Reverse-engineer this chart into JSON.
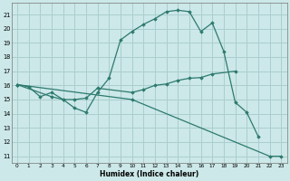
{
  "xlabel": "Humidex (Indice chaleur)",
  "bg_color": "#cce8e8",
  "grid_color": "#aacece",
  "line_color": "#2d7a6e",
  "xlim": [
    -0.5,
    23.5
  ],
  "ylim": [
    10.5,
    21.8
  ],
  "xticks": [
    0,
    1,
    2,
    3,
    4,
    5,
    6,
    7,
    8,
    9,
    10,
    11,
    12,
    13,
    14,
    15,
    16,
    17,
    18,
    19,
    20,
    21,
    22,
    23
  ],
  "yticks": [
    11,
    12,
    13,
    14,
    15,
    16,
    17,
    18,
    19,
    20,
    21
  ],
  "line1_x": [
    0,
    1,
    2,
    3,
    4,
    5,
    6,
    7,
    8,
    9,
    10,
    11,
    12,
    13,
    14,
    15,
    16,
    17,
    18,
    19,
    20,
    21
  ],
  "line1_y": [
    16.05,
    15.9,
    15.2,
    15.5,
    15.0,
    14.4,
    14.1,
    15.5,
    16.5,
    19.2,
    19.8,
    20.3,
    20.7,
    21.2,
    21.3,
    21.2,
    19.8,
    20.4,
    18.4,
    14.8,
    14.1,
    12.4
  ],
  "line2_x": [
    0,
    10,
    22,
    23
  ],
  "line2_y": [
    16.05,
    15.0,
    11.0,
    11.0
  ],
  "line3_x": [
    0,
    3,
    4,
    5,
    6,
    7,
    10,
    11,
    12,
    13,
    14,
    15,
    16,
    17,
    19
  ],
  "line3_y": [
    16.05,
    15.2,
    15.0,
    15.0,
    15.1,
    15.8,
    15.5,
    15.7,
    16.0,
    16.1,
    16.35,
    16.5,
    16.55,
    16.8,
    17.0
  ]
}
